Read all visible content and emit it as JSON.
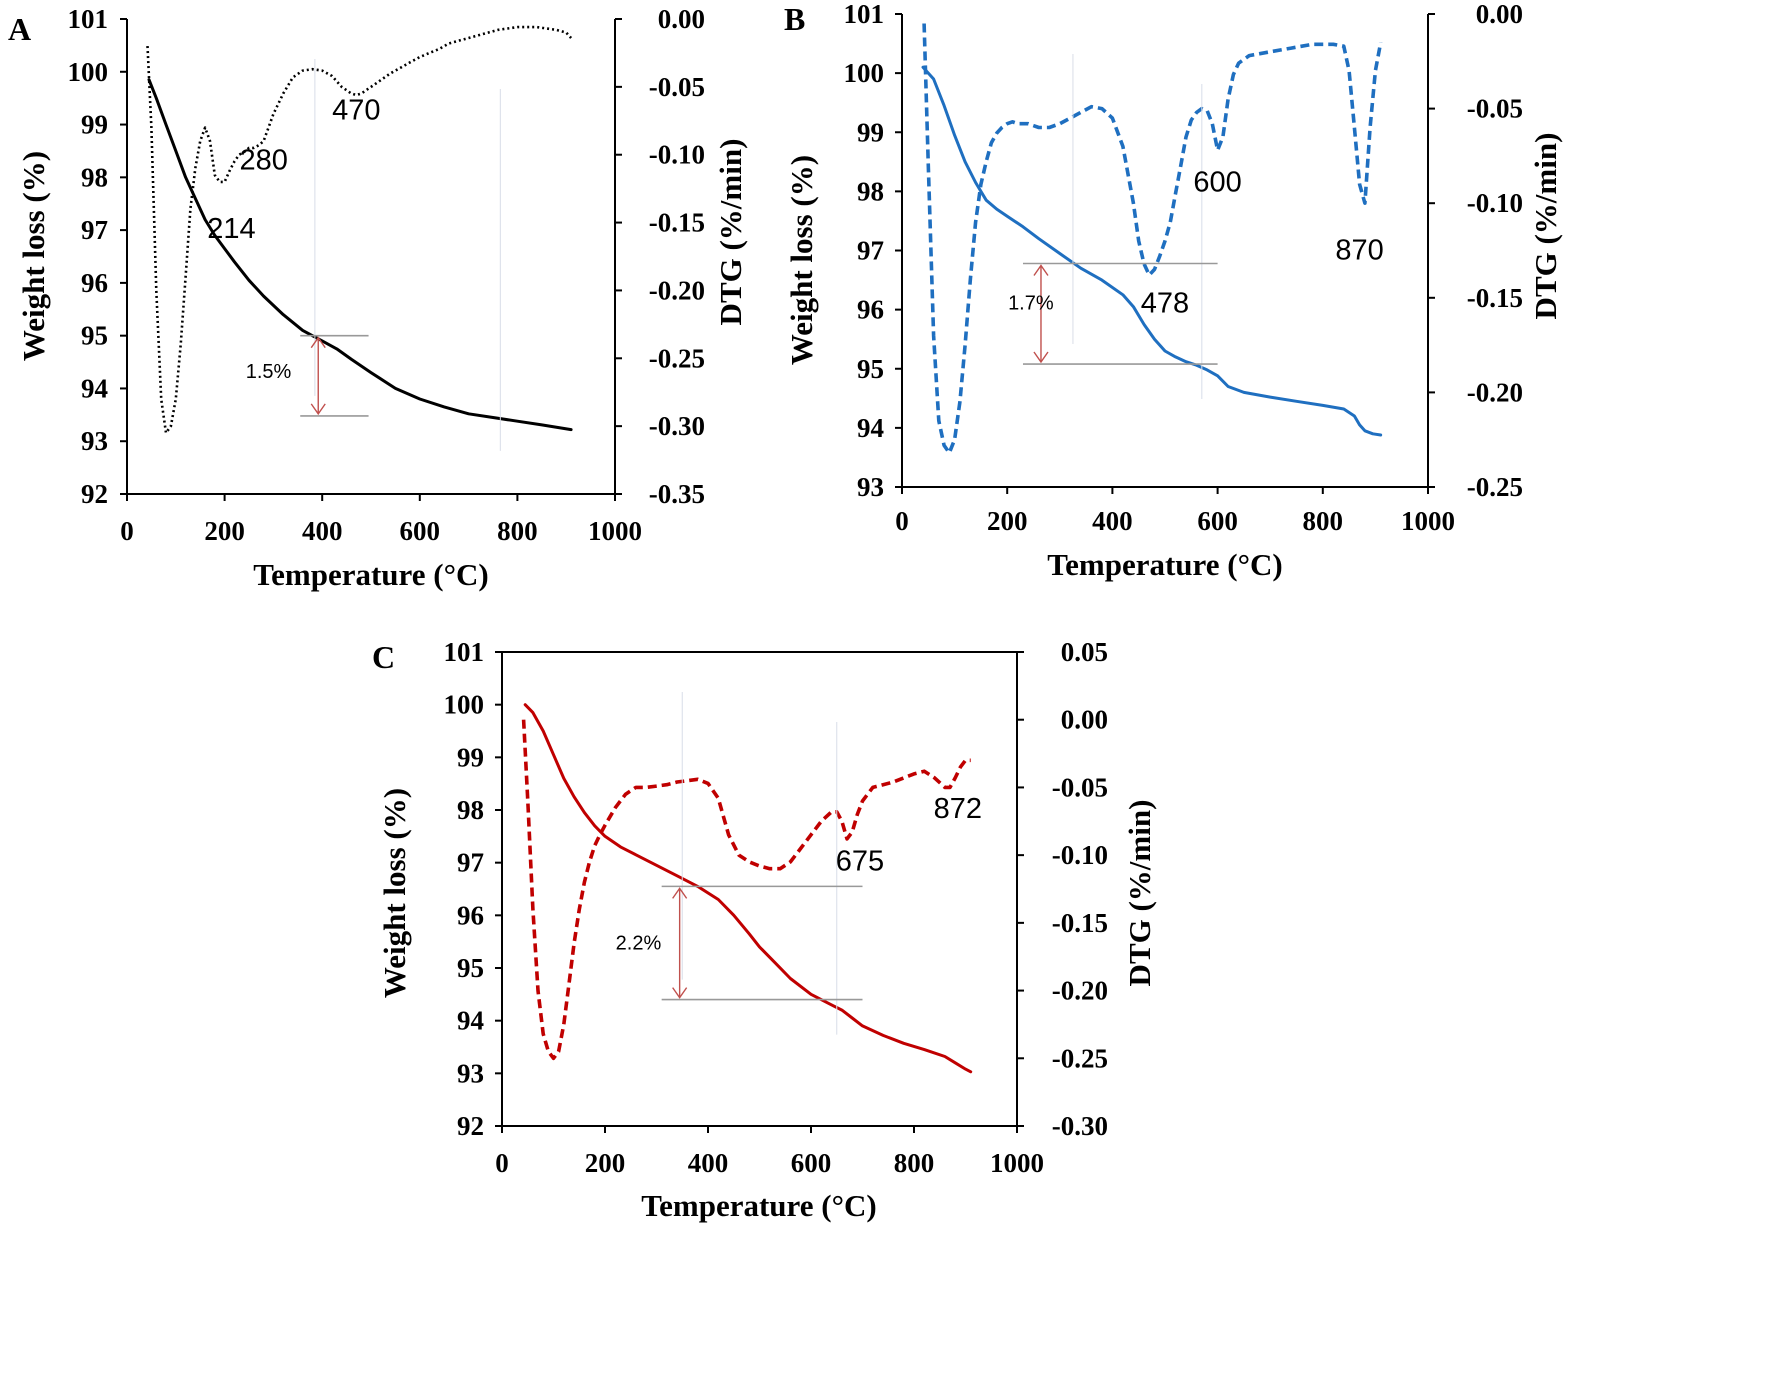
{
  "chart_data": [
    {
      "panel": "A",
      "type": "line",
      "xlabel": "Temperature (°C)",
      "ylabel": "Weight loss (%)",
      "y2label": "DTG (%/min)",
      "xlim": [
        0,
        1000
      ],
      "ylim": [
        92,
        101
      ],
      "y2lim": [
        -0.35,
        0.0
      ],
      "xticks": [
        "0",
        "200",
        "400",
        "600",
        "800",
        "1000"
      ],
      "yticks": [
        "92",
        "93",
        "94",
        "95",
        "96",
        "97",
        "98",
        "99",
        "100",
        "101"
      ],
      "y2ticks": [
        "-0.35",
        "-0.30",
        "-0.25",
        "-0.20",
        "-0.15",
        "-0.10",
        "-0.05",
        "0.00"
      ],
      "color": "#000000",
      "series": [
        {
          "axis": "left",
          "style": "solid",
          "x": [
            45,
            60,
            80,
            100,
            120,
            140,
            160,
            180,
            200,
            220,
            250,
            280,
            320,
            360,
            380,
            400,
            430,
            460,
            500,
            550,
            600,
            650,
            700,
            750,
            800,
            850,
            910
          ],
          "y": [
            99.85,
            99.5,
            99.0,
            98.5,
            98.0,
            97.6,
            97.2,
            96.9,
            96.65,
            96.4,
            96.05,
            95.75,
            95.4,
            95.1,
            95.0,
            94.9,
            94.75,
            94.55,
            94.3,
            94.0,
            93.8,
            93.65,
            93.52,
            93.45,
            93.38,
            93.31,
            93.22
          ]
        },
        {
          "axis": "right",
          "style": "dotted",
          "x": [
            42,
            50,
            60,
            70,
            80,
            90,
            100,
            110,
            120,
            130,
            140,
            150,
            160,
            170,
            180,
            190,
            200,
            210,
            220,
            230,
            240,
            250,
            260,
            270,
            280,
            290,
            300,
            320,
            340,
            360,
            380,
            400,
            420,
            440,
            460,
            470,
            480,
            500,
            520,
            540,
            560,
            580,
            600,
            620,
            640,
            660,
            680,
            700,
            720,
            740,
            760,
            780,
            800,
            820,
            840,
            860,
            880,
            900,
            910
          ],
          "y": [
            -0.02,
            -0.08,
            -0.2,
            -0.28,
            -0.305,
            -0.3,
            -0.28,
            -0.24,
            -0.19,
            -0.14,
            -0.11,
            -0.09,
            -0.08,
            -0.09,
            -0.115,
            -0.12,
            -0.12,
            -0.112,
            -0.105,
            -0.1,
            -0.098,
            -0.095,
            -0.095,
            -0.093,
            -0.09,
            -0.08,
            -0.07,
            -0.055,
            -0.043,
            -0.038,
            -0.037,
            -0.038,
            -0.042,
            -0.05,
            -0.055,
            -0.056,
            -0.055,
            -0.05,
            -0.045,
            -0.04,
            -0.036,
            -0.032,
            -0.028,
            -0.025,
            -0.022,
            -0.018,
            -0.016,
            -0.014,
            -0.012,
            -0.01,
            -0.008,
            -0.007,
            -0.006,
            -0.006,
            -0.006,
            -0.007,
            -0.008,
            -0.01,
            -0.014
          ]
        }
      ],
      "annotations": [
        {
          "text": "214",
          "x": 214,
          "y": 96.85
        },
        {
          "text": "280",
          "x": 280,
          "y": 98.15
        },
        {
          "text": "470",
          "x": 470,
          "y": 99.1
        }
      ],
      "loss": {
        "text": "1.5%",
        "x_start": 385,
        "x_end": 765,
        "y_top": 95.0,
        "y_bottom": 93.48,
        "ref_xmin": 355,
        "ref_xmax": 495,
        "label_x": 290,
        "label_y": 94.2
      }
    },
    {
      "panel": "B",
      "type": "line",
      "xlabel": "Temperature (°C)",
      "ylabel": "Weight loss (%)",
      "y2label": "DTG (%/min)",
      "xlim": [
        0,
        1000
      ],
      "ylim": [
        93,
        101
      ],
      "y2lim": [
        -0.25,
        0.0
      ],
      "xticks": [
        "0",
        "200",
        "400",
        "600",
        "800",
        "1000"
      ],
      "yticks": [
        "93",
        "94",
        "95",
        "96",
        "97",
        "98",
        "99",
        "100",
        "101"
      ],
      "y2ticks": [
        "-0.25",
        "-0.20",
        "-0.15",
        "-0.10",
        "-0.05",
        "0.00"
      ],
      "color": "#1f6fc0",
      "series": [
        {
          "axis": "left",
          "style": "solid",
          "x": [
            40,
            50,
            60,
            80,
            100,
            120,
            140,
            160,
            180,
            200,
            230,
            260,
            300,
            340,
            380,
            420,
            440,
            460,
            480,
            500,
            520,
            540,
            560,
            580,
            600,
            620,
            650,
            700,
            750,
            800,
            840,
            860,
            870,
            880,
            895,
            910
          ],
          "y": [
            100.1,
            100.0,
            99.9,
            99.45,
            98.95,
            98.5,
            98.15,
            97.85,
            97.7,
            97.58,
            97.4,
            97.2,
            96.95,
            96.7,
            96.5,
            96.25,
            96.05,
            95.75,
            95.5,
            95.3,
            95.2,
            95.12,
            95.06,
            94.98,
            94.88,
            94.7,
            94.6,
            94.52,
            94.45,
            94.38,
            94.32,
            94.2,
            94.05,
            93.95,
            93.9,
            93.88
          ]
        },
        {
          "axis": "right",
          "style": "dashed",
          "x": [
            42,
            50,
            60,
            70,
            80,
            90,
            100,
            110,
            120,
            130,
            140,
            150,
            160,
            170,
            180,
            190,
            200,
            210,
            220,
            240,
            260,
            280,
            300,
            320,
            340,
            360,
            380,
            400,
            420,
            440,
            450,
            460,
            470,
            480,
            490,
            500,
            510,
            520,
            530,
            540,
            550,
            560,
            570,
            580,
            590,
            600,
            610,
            620,
            630,
            640,
            650,
            660,
            700,
            740,
            780,
            820,
            840,
            850,
            860,
            870,
            880,
            890,
            900,
            910
          ],
          "y": [
            -0.005,
            -0.08,
            -0.17,
            -0.215,
            -0.228,
            -0.232,
            -0.225,
            -0.205,
            -0.175,
            -0.14,
            -0.11,
            -0.09,
            -0.078,
            -0.068,
            -0.063,
            -0.06,
            -0.058,
            -0.057,
            -0.058,
            -0.058,
            -0.06,
            -0.06,
            -0.058,
            -0.055,
            -0.052,
            -0.049,
            -0.05,
            -0.055,
            -0.07,
            -0.1,
            -0.12,
            -0.132,
            -0.138,
            -0.135,
            -0.128,
            -0.12,
            -0.11,
            -0.095,
            -0.08,
            -0.065,
            -0.056,
            -0.052,
            -0.05,
            -0.051,
            -0.058,
            -0.072,
            -0.065,
            -0.045,
            -0.032,
            -0.026,
            -0.024,
            -0.022,
            -0.02,
            -0.018,
            -0.016,
            -0.016,
            -0.017,
            -0.03,
            -0.06,
            -0.09,
            -0.1,
            -0.06,
            -0.03,
            -0.015
          ]
        }
      ],
      "annotations": [
        {
          "text": "478",
          "x": 500,
          "y": 95.95
        },
        {
          "text": "600",
          "x": 600,
          "y": 98.0
        },
        {
          "text": "870",
          "x": 870,
          "y": 96.85
        }
      ],
      "loss": {
        "text": "1.7%",
        "x_start": 325,
        "x_end": 570,
        "y_top": 96.78,
        "y_bottom": 95.08,
        "ref_xmin": 230,
        "ref_xmax": 600,
        "label_x": 245,
        "label_y": 96.0
      }
    },
    {
      "panel": "C",
      "type": "line",
      "xlabel": "Temperature (°C)",
      "ylabel": "Weight loss (%)",
      "y2label": "DTG (%/min)",
      "xlim": [
        0,
        1000
      ],
      "ylim": [
        92,
        101
      ],
      "y2lim": [
        -0.3,
        0.05
      ],
      "xticks": [
        "0",
        "200",
        "400",
        "600",
        "800",
        "1000"
      ],
      "yticks": [
        "92",
        "93",
        "94",
        "95",
        "96",
        "97",
        "98",
        "99",
        "100",
        "101"
      ],
      "y2ticks": [
        "-0.30",
        "-0.25",
        "-0.20",
        "-0.15",
        "-0.10",
        "-0.05",
        "0.00",
        "0.05"
      ],
      "color": "#c00000",
      "series": [
        {
          "axis": "left",
          "style": "solid",
          "x": [
            45,
            60,
            80,
            100,
            120,
            140,
            160,
            180,
            200,
            230,
            260,
            300,
            340,
            380,
            420,
            450,
            480,
            500,
            530,
            560,
            600,
            640,
            660,
            680,
            700,
            740,
            780,
            820,
            860,
            880,
            900,
            910
          ],
          "y": [
            100.0,
            99.85,
            99.5,
            99.05,
            98.6,
            98.25,
            97.95,
            97.7,
            97.5,
            97.3,
            97.15,
            96.95,
            96.75,
            96.55,
            96.3,
            96.0,
            95.65,
            95.4,
            95.1,
            94.8,
            94.5,
            94.3,
            94.2,
            94.05,
            93.9,
            93.72,
            93.57,
            93.45,
            93.32,
            93.2,
            93.08,
            93.03
          ]
        },
        {
          "axis": "right",
          "style": "dashed",
          "x": [
            42,
            50,
            60,
            70,
            80,
            90,
            100,
            110,
            120,
            130,
            140,
            150,
            160,
            170,
            180,
            190,
            200,
            220,
            240,
            260,
            280,
            300,
            320,
            340,
            360,
            380,
            400,
            420,
            440,
            460,
            480,
            500,
            520,
            540,
            560,
            580,
            600,
            620,
            640,
            650,
            660,
            670,
            680,
            690,
            700,
            720,
            740,
            760,
            780,
            800,
            820,
            840,
            860,
            870,
            880,
            890,
            900,
            910
          ],
          "y": [
            0.0,
            -0.06,
            -0.14,
            -0.2,
            -0.232,
            -0.245,
            -0.25,
            -0.245,
            -0.225,
            -0.195,
            -0.165,
            -0.14,
            -0.12,
            -0.105,
            -0.093,
            -0.085,
            -0.078,
            -0.065,
            -0.055,
            -0.05,
            -0.05,
            -0.049,
            -0.048,
            -0.046,
            -0.045,
            -0.044,
            -0.047,
            -0.058,
            -0.085,
            -0.1,
            -0.105,
            -0.108,
            -0.11,
            -0.11,
            -0.105,
            -0.095,
            -0.085,
            -0.075,
            -0.068,
            -0.068,
            -0.075,
            -0.088,
            -0.083,
            -0.07,
            -0.06,
            -0.05,
            -0.048,
            -0.046,
            -0.043,
            -0.04,
            -0.038,
            -0.043,
            -0.05,
            -0.05,
            -0.043,
            -0.035,
            -0.03,
            -0.03
          ]
        }
      ],
      "annotations": [
        {
          "text": "675",
          "x": 695,
          "y": 96.85
        },
        {
          "text": "872",
          "x": 885,
          "y": 97.85
        }
      ],
      "loss": {
        "text": "2.2%",
        "x_start": 350,
        "x_end": 650,
        "y_top": 96.55,
        "y_bottom": 94.4,
        "ref_xmin": 310,
        "ref_xmax": 700,
        "label_x": 265,
        "label_y": 95.35
      }
    }
  ]
}
